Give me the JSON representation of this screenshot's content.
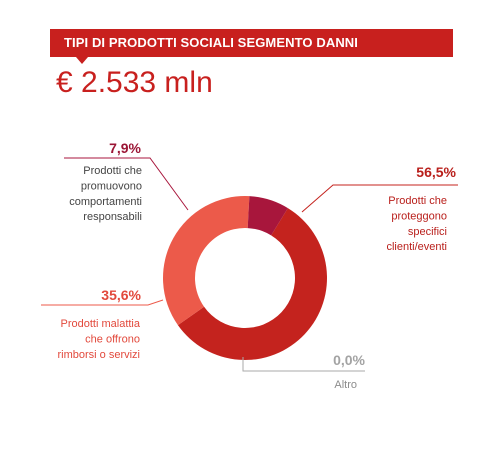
{
  "header": {
    "title": "TIPI DI PRODOTTI SOCIALI SEGMENTO DANNI",
    "total": "€ 2.533 mln"
  },
  "colors": {
    "banner": "#c8201e",
    "accent_text": "#c8201e"
  },
  "chart_data": {
    "type": "pie",
    "donut": true,
    "slices": [
      {
        "value": 56.5,
        "percent_label": "56,5%",
        "label_lines": [
          "Prodotti che",
          "proteggono",
          "specifici",
          "clienti/eventi"
        ],
        "color": "#c4231e",
        "text_color": "#b9201c",
        "label_color": "#b9201c"
      },
      {
        "value": 0.0,
        "percent_label": "0,0%",
        "label_lines": [
          "Altro"
        ],
        "color": "#aaaaaa",
        "text_color": "#a3a3a3",
        "label_color": "#8c8c8c"
      },
      {
        "value": 35.6,
        "percent_label": "35,6%",
        "label_lines": [
          "Prodotti malattia",
          "che offrono",
          "rimborsi o servizi"
        ],
        "color": "#ec5a4a",
        "text_color": "#e2493c",
        "label_color": "#e2493c"
      },
      {
        "value": 7.9,
        "percent_label": "7,9%",
        "label_lines": [
          "Prodotti che",
          "promuovono",
          "comportamenti",
          "responsabili"
        ],
        "color": "#a8163c",
        "text_color": "#9b1535",
        "label_color": "#444444"
      }
    ]
  }
}
